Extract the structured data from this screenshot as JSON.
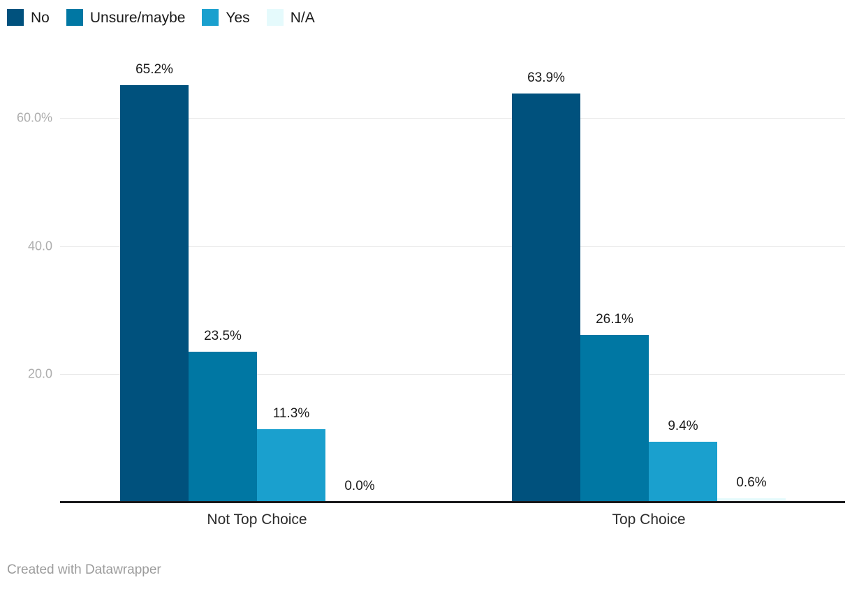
{
  "legend": {
    "items": [
      {
        "label": "No",
        "color": "#00517d"
      },
      {
        "label": "Unsure/maybe",
        "color": "#0077a3"
      },
      {
        "label": "Yes",
        "color": "#1aa0ce"
      },
      {
        "label": "N/A",
        "color": "#e5fafc"
      }
    ]
  },
  "chart_data": {
    "type": "bar",
    "title": "",
    "categories": [
      "Not Top Choice",
      "Top Choice"
    ],
    "series": [
      {
        "name": "No",
        "color": "#00517d",
        "values": [
          65.2,
          63.9
        ]
      },
      {
        "name": "Unsure/maybe",
        "color": "#0077a3",
        "values": [
          23.5,
          26.1
        ]
      },
      {
        "name": "Yes",
        "color": "#1aa0ce",
        "values": [
          11.3,
          9.4
        ]
      },
      {
        "name": "N/A",
        "color": "#e5fafc",
        "values": [
          0.0,
          0.6
        ]
      }
    ],
    "data_labels": [
      [
        "65.2%",
        "23.5%",
        "11.3%",
        "0.0%"
      ],
      [
        "63.9%",
        "26.1%",
        "9.4%",
        "0.6%"
      ]
    ],
    "y_axis": {
      "unit": "%",
      "ticks": [
        {
          "value": 20,
          "label": "20.0"
        },
        {
          "value": 40,
          "label": "40.0"
        },
        {
          "value": 60,
          "label": "60.0%"
        }
      ],
      "range": [
        0,
        70
      ]
    },
    "grid": true,
    "legend_position": "top-left"
  },
  "colors": {
    "grid": "#e9e9e9",
    "axis_tick_label": "#adadad",
    "baseline": "#19191b",
    "data_label": "#1a1a1a",
    "category_label": "#2b2b2b",
    "footer_text": "#9c9c9c",
    "background": "#ffffff"
  },
  "footer": {
    "credit": "Created with Datawrapper"
  }
}
